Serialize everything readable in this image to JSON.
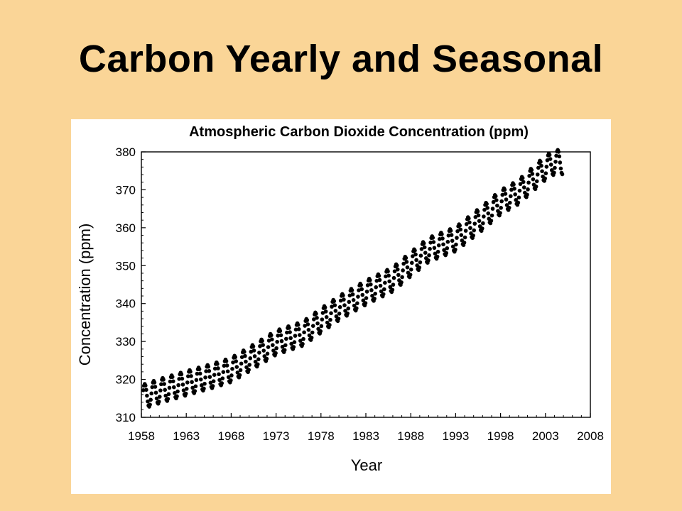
{
  "slide": {
    "title": "Carbon Yearly and Seasonal"
  },
  "chart_data": {
    "type": "scatter",
    "title": "Atmospheric Carbon Dioxide Concentration (ppm)",
    "xlabel": "Year",
    "ylabel": "Concentration (ppm)",
    "xlim": [
      1958,
      2008
    ],
    "ylim": [
      310,
      380
    ],
    "xticks": [
      1958,
      1963,
      1968,
      1973,
      1978,
      1983,
      1988,
      1993,
      1998,
      2003,
      2008
    ],
    "yticks": [
      310,
      320,
      330,
      340,
      350,
      360,
      370,
      380
    ],
    "grid": false,
    "legend": "none",
    "marker_color": "#000000",
    "annual_mean": {
      "x": [
        1958,
        1960,
        1963,
        1966,
        1968,
        1970,
        1973,
        1976,
        1978,
        1980,
        1983,
        1986,
        1988,
        1990,
        1993,
        1996,
        1998,
        2000,
        2003,
        2004
      ],
      "y": [
        315.3,
        316.9,
        319.0,
        321.0,
        322.5,
        325.3,
        329.7,
        332.1,
        335.5,
        338.8,
        342.9,
        346.4,
        350.4,
        354.2,
        357.0,
        362.6,
        366.7,
        369.4,
        375.8,
        377.3
      ]
    },
    "seasonal_amplitude_ppm": 3.2
  }
}
